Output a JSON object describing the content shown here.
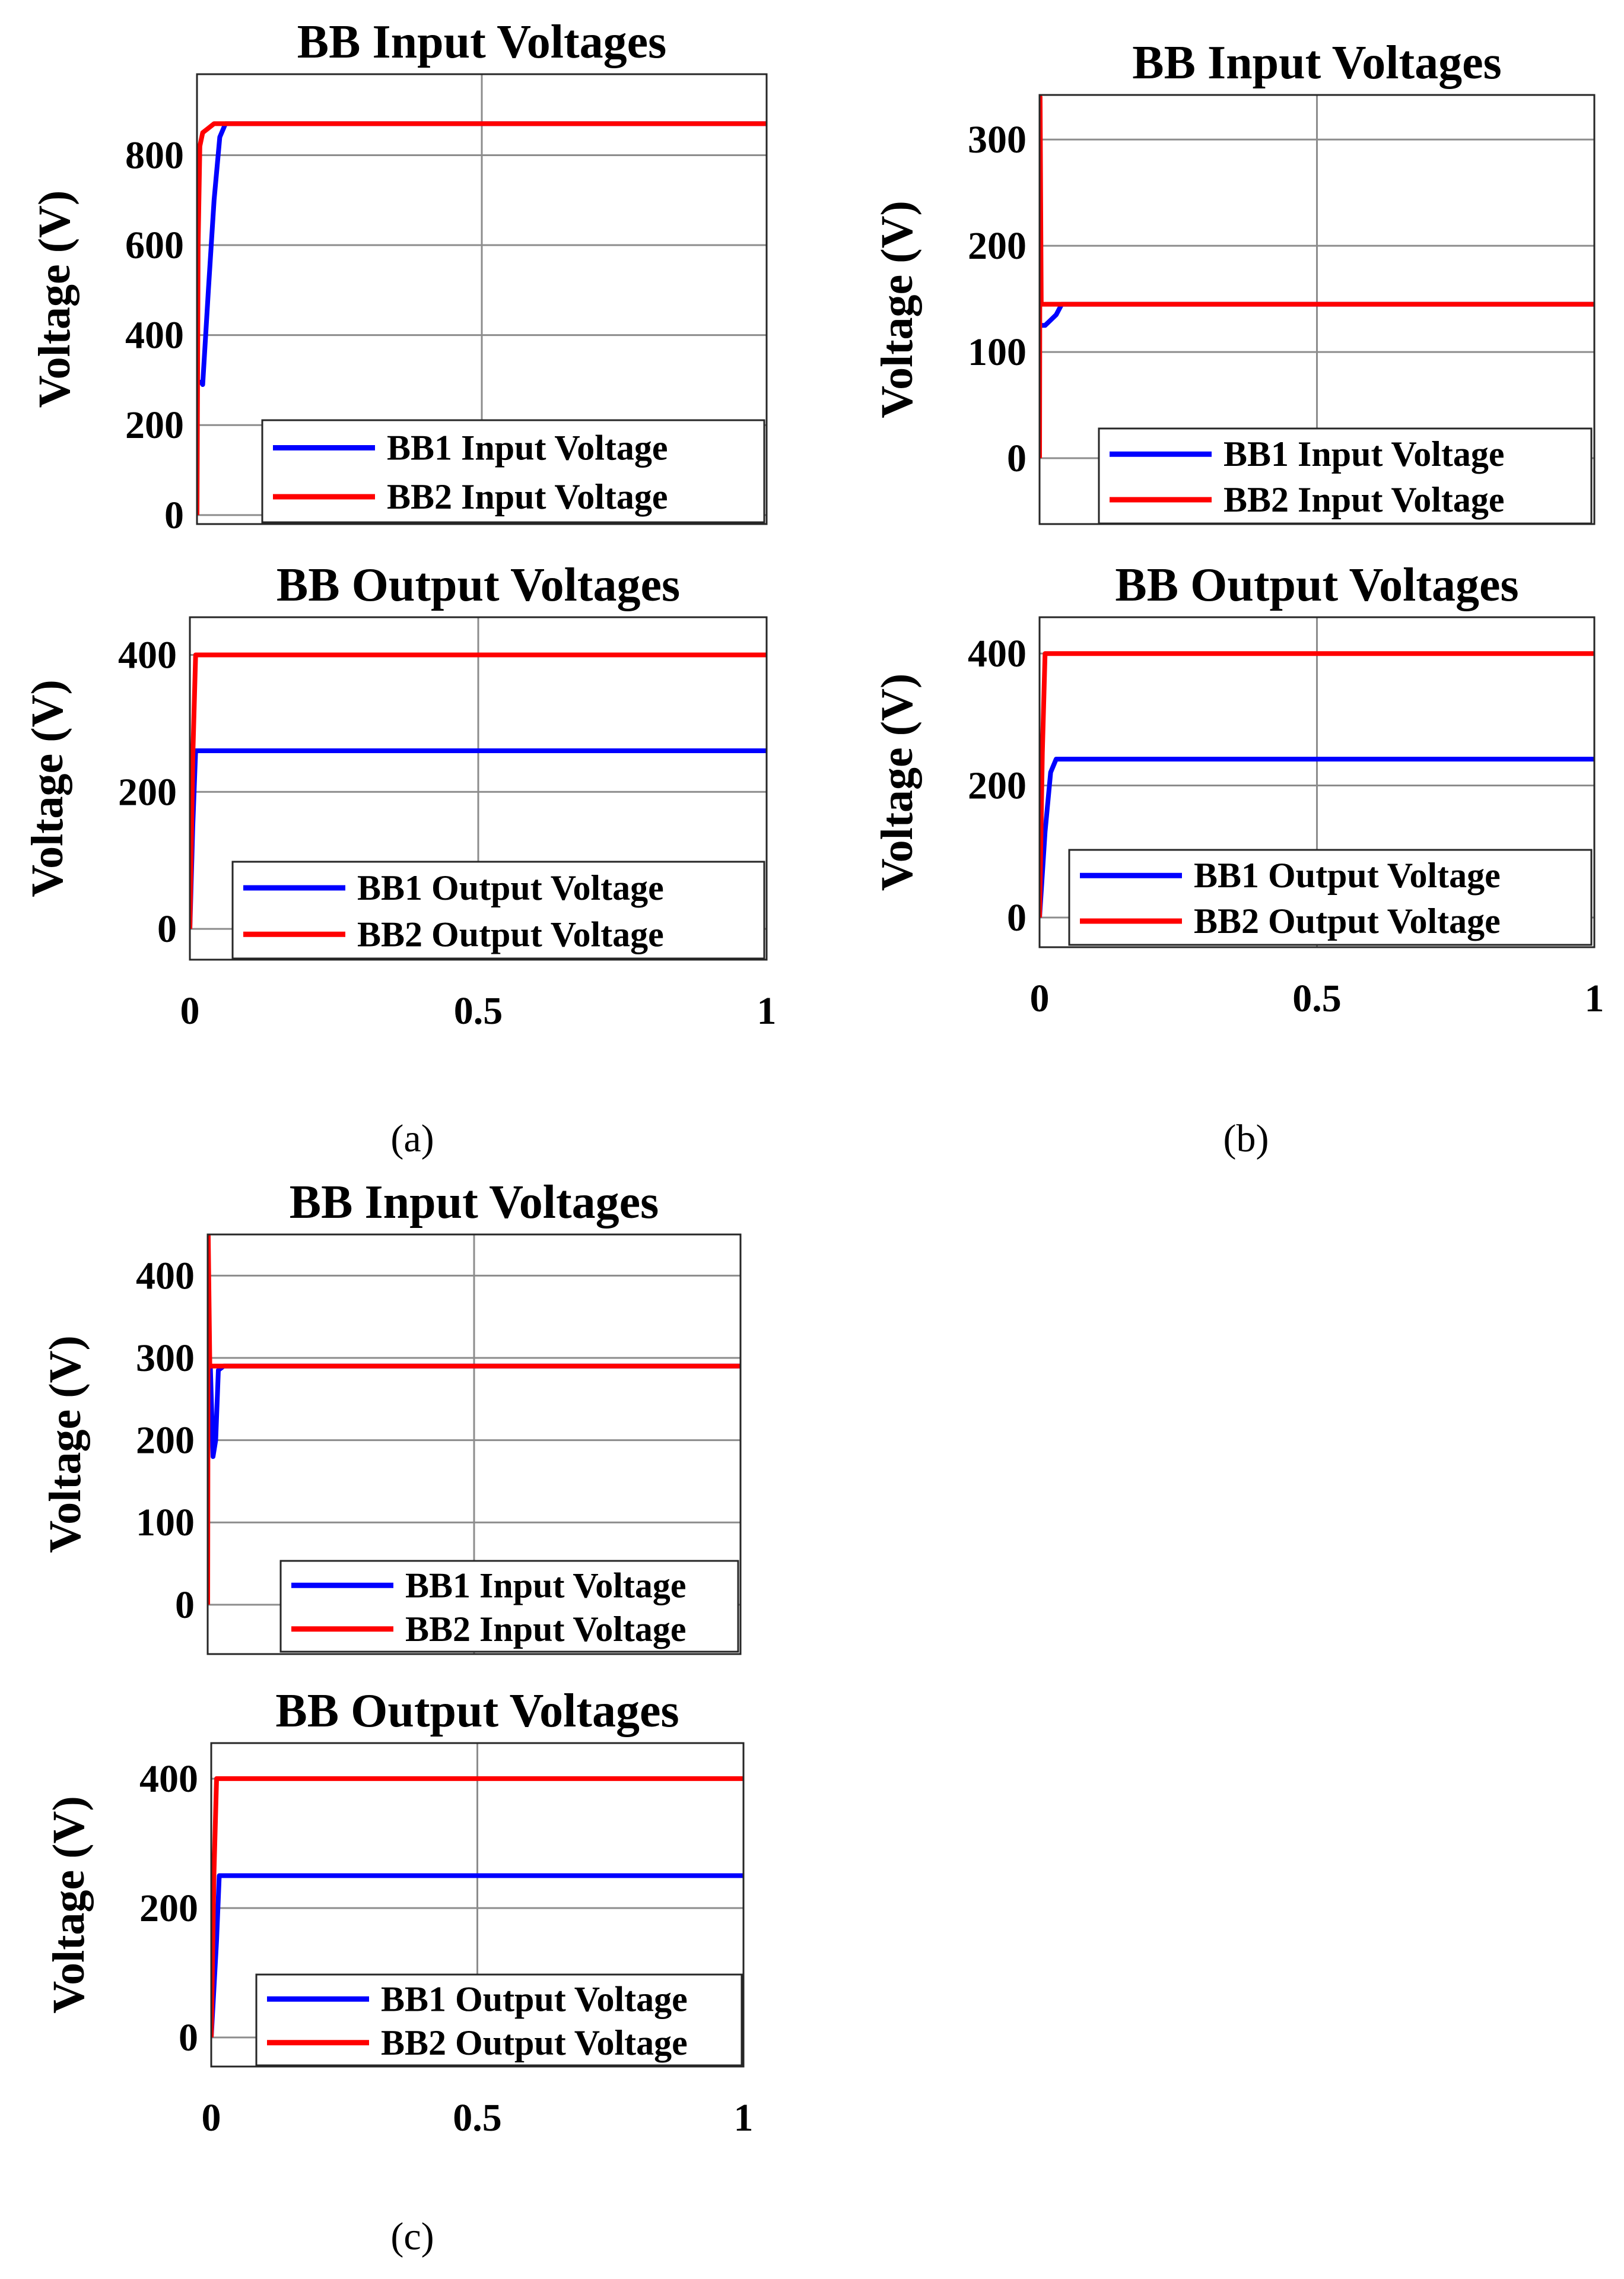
{
  "panels": [
    {
      "label": "(a)"
    },
    {
      "label": "(b)"
    },
    {
      "label": "(c)"
    }
  ],
  "chart_data": [
    {
      "panel": "(a)",
      "type": "line",
      "title": "BB Input Voltages",
      "xlabel": "",
      "ylabel": "Voltage (V)",
      "xlim": [
        0,
        1
      ],
      "ylim": [
        -20,
        980
      ],
      "xticks": [],
      "yticks": [
        0,
        200,
        400,
        600,
        800
      ],
      "grid": true,
      "legend_position": "bottom-right",
      "series": [
        {
          "name": "BB1 Input Voltage",
          "color": "#0000ff",
          "x": [
            0.005,
            0.01,
            0.02,
            0.03,
            0.04,
            0.05,
            1.0
          ],
          "y": [
            300,
            290,
            500,
            700,
            840,
            870,
            870
          ]
        },
        {
          "name": "BB2 Input Voltage",
          "color": "#ff0000",
          "x": [
            0,
            0.002,
            0.005,
            0.01,
            0.02,
            0.03,
            1.0
          ],
          "y": [
            0,
            600,
            820,
            850,
            860,
            870,
            870
          ]
        }
      ]
    },
    {
      "panel": "(a)",
      "type": "line",
      "title": "BB Output Voltages",
      "xlabel": "",
      "ylabel": "Voltage (V)",
      "xlim": [
        0,
        1
      ],
      "ylim": [
        -45,
        455
      ],
      "xticks": [
        0,
        0.5,
        1
      ],
      "yticks": [
        0,
        200,
        400
      ],
      "grid": true,
      "legend_position": "bottom-right",
      "series": [
        {
          "name": "BB1 Output Voltage",
          "color": "#0000ff",
          "x": [
            0,
            0.005,
            0.01,
            1.0
          ],
          "y": [
            0,
            150,
            260,
            260
          ]
        },
        {
          "name": "BB2 Output Voltage",
          "color": "#ff0000",
          "x": [
            0,
            0.005,
            0.01,
            1.0
          ],
          "y": [
            0,
            250,
            400,
            400
          ]
        }
      ]
    },
    {
      "panel": "(b)",
      "type": "line",
      "title": "BB Input Voltages",
      "xlabel": "",
      "ylabel": "Voltage (V)",
      "xlim": [
        0,
        1
      ],
      "ylim": [
        -62,
        342
      ],
      "xticks": [],
      "yticks": [
        0,
        100,
        200,
        300
      ],
      "grid": true,
      "legend_position": "bottom-right",
      "series": [
        {
          "name": "BB1 Input Voltage",
          "color": "#0000ff",
          "x": [
            0,
            0.01,
            0.02,
            0.03,
            0.04,
            1.0
          ],
          "y": [
            125,
            125,
            130,
            135,
            145,
            145
          ]
        },
        {
          "name": "BB2 Input Voltage",
          "color": "#ff0000",
          "x": [
            0,
            0.001,
            0.003,
            0.006,
            1.0
          ],
          "y": [
            0,
            340,
            145,
            145,
            145
          ]
        }
      ]
    },
    {
      "panel": "(b)",
      "type": "line",
      "title": "BB Output Voltages",
      "xlabel": "",
      "ylabel": "Voltage (V)",
      "xlim": [
        0,
        1
      ],
      "ylim": [
        -45,
        455
      ],
      "xticks": [
        0,
        0.5,
        1
      ],
      "yticks": [
        0,
        200,
        400
      ],
      "grid": true,
      "legend_position": "bottom-right",
      "series": [
        {
          "name": "BB1 Output Voltage",
          "color": "#0000ff",
          "x": [
            0,
            0.01,
            0.02,
            0.03,
            1.0
          ],
          "y": [
            0,
            130,
            220,
            240,
            240
          ]
        },
        {
          "name": "BB2 Output Voltage",
          "color": "#ff0000",
          "x": [
            0,
            0.005,
            0.01,
            1.0
          ],
          "y": [
            0,
            250,
            400,
            400
          ]
        }
      ]
    },
    {
      "panel": "(c)",
      "type": "line",
      "title": "BB Input Voltages",
      "xlabel": "",
      "ylabel": "Voltage (V)",
      "xlim": [
        0,
        1
      ],
      "ylim": [
        -60,
        450
      ],
      "xticks": [],
      "yticks": [
        0,
        100,
        200,
        300,
        400
      ],
      "grid": true,
      "legend_position": "bottom-right",
      "series": [
        {
          "name": "BB1 Input Voltage",
          "color": "#0000ff",
          "x": [
            0.005,
            0.01,
            0.015,
            0.02,
            0.03,
            1.0
          ],
          "y": [
            290,
            180,
            200,
            285,
            290,
            290
          ]
        },
        {
          "name": "BB2 Input Voltage",
          "color": "#ff0000",
          "x": [
            0,
            0.001,
            0.004,
            0.01,
            1.0
          ],
          "y": [
            0,
            450,
            290,
            290,
            290
          ]
        }
      ]
    },
    {
      "panel": "(c)",
      "type": "line",
      "title": "BB Output Voltages",
      "xlabel": "",
      "ylabel": "Voltage (V)",
      "xlim": [
        0,
        1
      ],
      "ylim": [
        -45,
        455
      ],
      "xticks": [
        0,
        0.5,
        1
      ],
      "yticks": [
        0,
        200,
        400
      ],
      "grid": true,
      "legend_position": "bottom-right",
      "series": [
        {
          "name": "BB1 Output Voltage",
          "color": "#0000ff",
          "x": [
            0,
            0.01,
            0.015,
            1.0
          ],
          "y": [
            0,
            150,
            250,
            250
          ]
        },
        {
          "name": "BB2 Output Voltage",
          "color": "#ff0000",
          "x": [
            0,
            0.005,
            0.01,
            1.0
          ],
          "y": [
            0,
            250,
            400,
            400
          ]
        }
      ]
    }
  ]
}
